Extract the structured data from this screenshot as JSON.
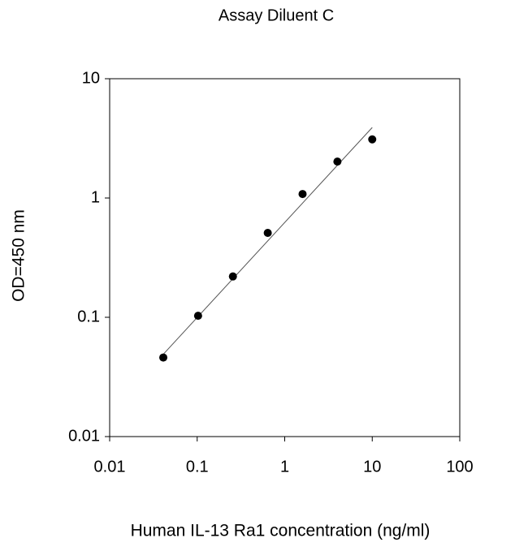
{
  "chart_data": {
    "type": "scatter",
    "title": "Assay Diluent C",
    "x_label": "Human IL-13 Ra1 concentration (ng/ml)",
    "y_label": "OD=450 nm",
    "x": [
      0.041,
      0.1024,
      0.256,
      0.64,
      1.6,
      4,
      10
    ],
    "values": [
      0.046,
      0.103,
      0.22,
      0.51,
      1.08,
      2.02,
      3.1
    ],
    "color": "#000000",
    "fit": {
      "x": [
        0.041,
        10
      ],
      "values": [
        0.049,
        3.9
      ],
      "color": "#555555"
    },
    "xscale": "log",
    "yscale": "log",
    "xlim": [
      0.01,
      100
    ],
    "ylim": [
      0.01,
      10
    ],
    "xticks": [
      0.01,
      0.1,
      1,
      10,
      100
    ],
    "yticks": [
      0.01,
      0.1,
      1,
      10
    ]
  }
}
